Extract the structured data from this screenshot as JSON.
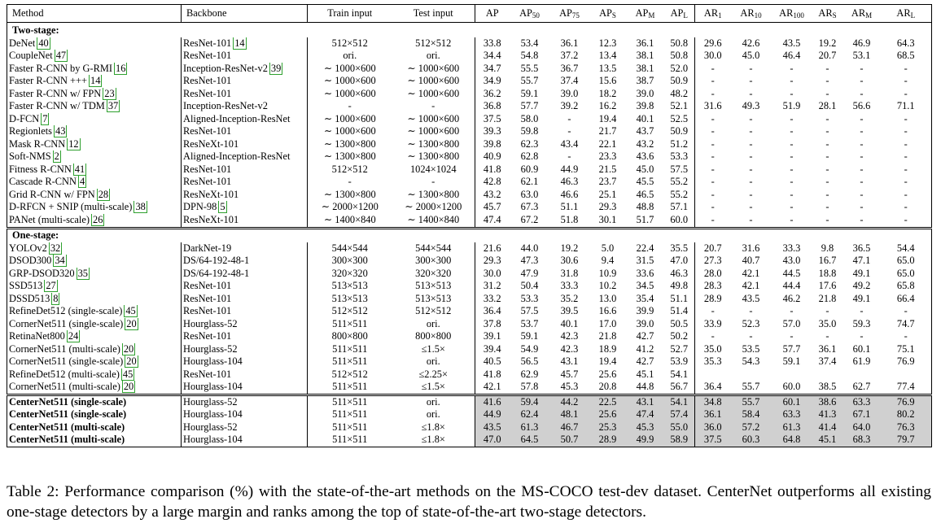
{
  "header": {
    "method": "Method",
    "backbone": "Backbone",
    "train_input": "Train input",
    "test_input": "Test input",
    "metrics": [
      {
        "base": "AP",
        "sub": ""
      },
      {
        "base": "AP",
        "sub": "50"
      },
      {
        "base": "AP",
        "sub": "75"
      },
      {
        "base": "AP",
        "sub": "S"
      },
      {
        "base": "AP",
        "sub": "M"
      },
      {
        "base": "AP",
        "sub": "L"
      },
      {
        "base": "AR",
        "sub": "1"
      },
      {
        "base": "AR",
        "sub": "10"
      },
      {
        "base": "AR",
        "sub": "100"
      },
      {
        "base": "AR",
        "sub": "S"
      },
      {
        "base": "AR",
        "sub": "M"
      },
      {
        "base": "AR",
        "sub": "L"
      }
    ]
  },
  "groups": [
    {
      "title": "Two-stage:",
      "rows": [
        {
          "method": "DeNet",
          "cite": "40",
          "backbone": "ResNet-101",
          "bcite": "14",
          "train": "512×512",
          "test": "512×512",
          "vals": [
            "33.8",
            "53.4",
            "36.1",
            "12.3",
            "36.1",
            "50.8",
            "29.6",
            "42.6",
            "43.5",
            "19.2",
            "46.9",
            "64.3"
          ],
          "bold": []
        },
        {
          "method": "CoupleNet",
          "cite": "47",
          "backbone": "ResNet-101",
          "bcite": "",
          "train": "ori.",
          "test": "ori.",
          "vals": [
            "34.4",
            "54.8",
            "37.2",
            "13.4",
            "38.1",
            "50.8",
            "30.0",
            "45.0",
            "46.4",
            "20.7",
            "53.1",
            "68.5"
          ],
          "bold": []
        },
        {
          "method": "Faster R-CNN by G-RMI",
          "cite": "16",
          "backbone": "Inception-ResNet-v2",
          "bcite": "39",
          "train": "∼ 1000×600",
          "test": "∼ 1000×600",
          "vals": [
            "34.7",
            "55.5",
            "36.7",
            "13.5",
            "38.1",
            "52.0",
            "-",
            "-",
            "-",
            "-",
            "-",
            "-"
          ],
          "bold": []
        },
        {
          "method": "Faster R-CNN +++",
          "cite": "14",
          "backbone": "ResNet-101",
          "bcite": "",
          "train": "∼ 1000×600",
          "test": "∼ 1000×600",
          "vals": [
            "34.9",
            "55.7",
            "37.4",
            "15.6",
            "38.7",
            "50.9",
            "-",
            "-",
            "-",
            "-",
            "-",
            "-"
          ],
          "bold": []
        },
        {
          "method": "Faster R-CNN w/ FPN",
          "cite": "23",
          "backbone": "ResNet-101",
          "bcite": "",
          "train": "∼ 1000×600",
          "test": "∼ 1000×600",
          "vals": [
            "36.2",
            "59.1",
            "39.0",
            "18.2",
            "39.0",
            "48.2",
            "-",
            "-",
            "-",
            "-",
            "-",
            "-"
          ],
          "bold": []
        },
        {
          "method": "Faster R-CNN w/ TDM",
          "cite": "37",
          "backbone": "Inception-ResNet-v2",
          "bcite": "",
          "train": "-",
          "test": "-",
          "vals": [
            "36.8",
            "57.7",
            "39.2",
            "16.2",
            "39.8",
            "52.1",
            "31.6",
            "49.3",
            "51.9",
            "28.1",
            "56.6",
            "71.1"
          ],
          "bold": [
            6,
            7,
            8,
            9,
            10,
            11
          ]
        },
        {
          "method": "D-FCN",
          "cite": "7",
          "backbone": "Aligned-Inception-ResNet",
          "bcite": "",
          "train": "∼ 1000×600",
          "test": "∼ 1000×600",
          "vals": [
            "37.5",
            "58.0",
            "-",
            "19.4",
            "40.1",
            "52.5",
            "-",
            "-",
            "-",
            "-",
            "-",
            "-"
          ],
          "bold": []
        },
        {
          "method": "Regionlets",
          "cite": "43",
          "backbone": "ResNet-101",
          "bcite": "",
          "train": "∼ 1000×600",
          "test": "∼ 1000×600",
          "vals": [
            "39.3",
            "59.8",
            "-",
            "21.7",
            "43.7",
            "50.9",
            "-",
            "-",
            "-",
            "-",
            "-",
            "-"
          ],
          "bold": []
        },
        {
          "method": "Mask R-CNN",
          "cite": "12",
          "backbone": "ResNeXt-101",
          "bcite": "",
          "train": "∼ 1300×800",
          "test": "∼ 1300×800",
          "vals": [
            "39.8",
            "62.3",
            "43.4",
            "22.1",
            "43.2",
            "51.2",
            "-",
            "-",
            "-",
            "-",
            "-",
            "-"
          ],
          "bold": []
        },
        {
          "method": "Soft-NMS",
          "cite": "2",
          "backbone": "Aligned-Inception-ResNet",
          "bcite": "",
          "train": "∼ 1300×800",
          "test": "∼ 1300×800",
          "vals": [
            "40.9",
            "62.8",
            "-",
            "23.3",
            "43.6",
            "53.3",
            "-",
            "-",
            "-",
            "-",
            "-",
            "-"
          ],
          "bold": []
        },
        {
          "method": "Fitness R-CNN",
          "cite": "41",
          "backbone": "ResNet-101",
          "bcite": "",
          "train": "512×512",
          "test": "1024×1024",
          "vals": [
            "41.8",
            "60.9",
            "44.9",
            "21.5",
            "45.0",
            "57.5",
            "-",
            "-",
            "-",
            "-",
            "-",
            "-"
          ],
          "bold": []
        },
        {
          "method": "Cascade R-CNN",
          "cite": "4",
          "backbone": "ResNet-101",
          "bcite": "",
          "train": "-",
          "test": "-",
          "vals": [
            "42.8",
            "62.1",
            "46.3",
            "23.7",
            "45.5",
            "55.2",
            "-",
            "-",
            "-",
            "-",
            "-",
            "-"
          ],
          "bold": []
        },
        {
          "method": "Grid R-CNN w/ FPN",
          "cite": "28",
          "backbone": "ResNeXt-101",
          "bcite": "",
          "train": "∼ 1300×800",
          "test": "∼ 1300×800",
          "vals": [
            "43.2",
            "63.0",
            "46.6",
            "25.1",
            "46.5",
            "55.2",
            "-",
            "-",
            "-",
            "-",
            "-",
            "-"
          ],
          "bold": []
        },
        {
          "method": "D-RFCN + SNIP (multi-scale)",
          "cite": "38",
          "backbone": "DPN-98",
          "bcite": "5",
          "train": "∼ 2000×1200",
          "test": "∼ 2000×1200",
          "vals": [
            "45.7",
            "67.3",
            "51.1",
            "29.3",
            "48.8",
            "57.1",
            "-",
            "-",
            "-",
            "-",
            "-",
            "-"
          ],
          "bold": [
            1
          ]
        },
        {
          "method": "PANet (multi-scale)",
          "cite": "26",
          "backbone": "ResNeXt-101",
          "bcite": "",
          "train": "∼ 1400×840",
          "test": "∼ 1400×840",
          "vals": [
            "47.4",
            "67.2",
            "51.8",
            "30.1",
            "51.7",
            "60.0",
            "-",
            "-",
            "-",
            "-",
            "-",
            "-"
          ],
          "bold": [
            0,
            2,
            3,
            4,
            5
          ]
        }
      ]
    },
    {
      "title": "One-stage:",
      "rows": [
        {
          "method": "YOLOv2",
          "cite": "32",
          "backbone": "DarkNet-19",
          "bcite": "",
          "train": "544×544",
          "test": "544×544",
          "vals": [
            "21.6",
            "44.0",
            "19.2",
            "5.0",
            "22.4",
            "35.5",
            "20.7",
            "31.6",
            "33.3",
            "9.8",
            "36.5",
            "54.4"
          ],
          "bold": []
        },
        {
          "method": "DSOD300",
          "cite": "34",
          "backbone": "DS/64-192-48-1",
          "bcite": "",
          "train": "300×300",
          "test": "300×300",
          "vals": [
            "29.3",
            "47.3",
            "30.6",
            "9.4",
            "31.5",
            "47.0",
            "27.3",
            "40.7",
            "43.0",
            "16.7",
            "47.1",
            "65.0"
          ],
          "bold": []
        },
        {
          "method": "GRP-DSOD320",
          "cite": "35",
          "backbone": "DS/64-192-48-1",
          "bcite": "",
          "train": "320×320",
          "test": "320×320",
          "vals": [
            "30.0",
            "47.9",
            "31.8",
            "10.9",
            "33.6",
            "46.3",
            "28.0",
            "42.1",
            "44.5",
            "18.8",
            "49.1",
            "65.0"
          ],
          "bold": []
        },
        {
          "method": "SSD513",
          "cite": "27",
          "backbone": "ResNet-101",
          "bcite": "",
          "train": "513×513",
          "test": "513×513",
          "vals": [
            "31.2",
            "50.4",
            "33.3",
            "10.2",
            "34.5",
            "49.8",
            "28.3",
            "42.1",
            "44.4",
            "17.6",
            "49.2",
            "65.8"
          ],
          "bold": []
        },
        {
          "method": "DSSD513",
          "cite": "8",
          "backbone": "ResNet-101",
          "bcite": "",
          "train": "513×513",
          "test": "513×513",
          "vals": [
            "33.2",
            "53.3",
            "35.2",
            "13.0",
            "35.4",
            "51.1",
            "28.9",
            "43.5",
            "46.2",
            "21.8",
            "49.1",
            "66.4"
          ],
          "bold": []
        },
        {
          "method": "RefineDet512 (single-scale)",
          "cite": "45",
          "backbone": "ResNet-101",
          "bcite": "",
          "train": "512×512",
          "test": "512×512",
          "vals": [
            "36.4",
            "57.5",
            "39.5",
            "16.6",
            "39.9",
            "51.4",
            "-",
            "-",
            "-",
            "-",
            "-",
            "-"
          ],
          "bold": []
        },
        {
          "method": "CornerNet511 (single-scale)",
          "cite": "20",
          "backbone": "Hourglass-52",
          "bcite": "",
          "train": "511×511",
          "test": "ori.",
          "vals": [
            "37.8",
            "53.7",
            "40.1",
            "17.0",
            "39.0",
            "50.5",
            "33.9",
            "52.3",
            "57.0",
            "35.0",
            "59.3",
            "74.7"
          ],
          "bold": []
        },
        {
          "method": "RetinaNet800",
          "cite": "24",
          "backbone": "ResNet-101",
          "bcite": "",
          "train": "800×800",
          "test": "800×800",
          "vals": [
            "39.1",
            "59.1",
            "42.3",
            "21.8",
            "42.7",
            "50.2",
            "-",
            "-",
            "-",
            "-",
            "-",
            "-"
          ],
          "bold": []
        },
        {
          "method": "CornerNet511 (multi-scale)",
          "cite": "20",
          "backbone": "Hourglass-52",
          "bcite": "",
          "train": "511×511",
          "test": "≤1.5×",
          "vals": [
            "39.4",
            "54.9",
            "42.3",
            "18.9",
            "41.2",
            "52.7",
            "35.0",
            "53.5",
            "57.7",
            "36.1",
            "60.1",
            "75.1"
          ],
          "bold": []
        },
        {
          "method": "CornerNet511 (single-scale)",
          "cite": "20",
          "backbone": "Hourglass-104",
          "bcite": "",
          "train": "511×511",
          "test": "ori.",
          "vals": [
            "40.5",
            "56.5",
            "43.1",
            "19.4",
            "42.7",
            "53.9",
            "35.3",
            "54.3",
            "59.1",
            "37.4",
            "61.9",
            "76.9"
          ],
          "bold": []
        },
        {
          "method": "RefineDet512 (multi-scale)",
          "cite": "45",
          "backbone": "ResNet-101",
          "bcite": "",
          "train": "512×512",
          "test": "≤2.25×",
          "vals": [
            "41.8",
            "62.9",
            "45.7",
            "25.6",
            "45.1",
            "54.1",
            "",
            "",
            "",
            "",
            "",
            ""
          ],
          "bold": []
        },
        {
          "method": "CornerNet511 (multi-scale)",
          "cite": "20",
          "backbone": "Hourglass-104",
          "bcite": "",
          "train": "511×511",
          "test": "≤1.5×",
          "vals": [
            "42.1",
            "57.8",
            "45.3",
            "20.8",
            "44.8",
            "56.7",
            "36.4",
            "55.7",
            "60.0",
            "38.5",
            "62.7",
            "77.4"
          ],
          "bold": []
        }
      ]
    },
    {
      "title": "",
      "ours": true,
      "rows": [
        {
          "method": "CenterNet511 (single-scale)",
          "cite": "",
          "backbone": "Hourglass-52",
          "bcite": "",
          "train": "511×511",
          "test": "ori.",
          "vals": [
            "41.6",
            "59.4",
            "44.2",
            "22.5",
            "43.1",
            "54.1",
            "34.8",
            "55.7",
            "60.1",
            "38.6",
            "63.3",
            "76.9"
          ],
          "bold": []
        },
        {
          "method": "CenterNet511 (single-scale)",
          "cite": "",
          "backbone": "Hourglass-104",
          "bcite": "",
          "train": "511×511",
          "test": "ori.",
          "vals": [
            "44.9",
            "62.4",
            "48.1",
            "25.6",
            "47.4",
            "57.4",
            "36.1",
            "58.4",
            "63.3",
            "41.3",
            "67.1",
            "80.2"
          ],
          "bold": []
        },
        {
          "method": "CenterNet511 (multi-scale)",
          "cite": "",
          "backbone": "Hourglass-52",
          "bcite": "",
          "train": "511×511",
          "test": "≤1.8×",
          "vals": [
            "43.5",
            "61.3",
            "46.7",
            "25.3",
            "45.3",
            "55.0",
            "36.0",
            "57.2",
            "61.3",
            "41.4",
            "64.0",
            "76.3"
          ],
          "bold": []
        },
        {
          "method": "CenterNet511 (multi-scale)",
          "cite": "",
          "backbone": "Hourglass-104",
          "bcite": "",
          "train": "511×511",
          "test": "≤1.8×",
          "vals": [
            "47.0",
            "64.5",
            "50.7",
            "28.9",
            "49.9",
            "58.9",
            "37.5",
            "60.3",
            "64.8",
            "45.1",
            "68.3",
            "79.7"
          ],
          "bold": [
            0,
            1,
            2,
            3,
            4,
            5,
            6,
            7,
            8,
            9,
            10,
            11
          ]
        }
      ]
    }
  ],
  "caption": "Table 2: Performance comparison (%) with the state-of-the-art methods on the MS-COCO test-dev dataset. CenterNet outperforms all existing one-stage detectors by a large margin and ranks among the top of state-of-the-art two-stage detectors."
}
